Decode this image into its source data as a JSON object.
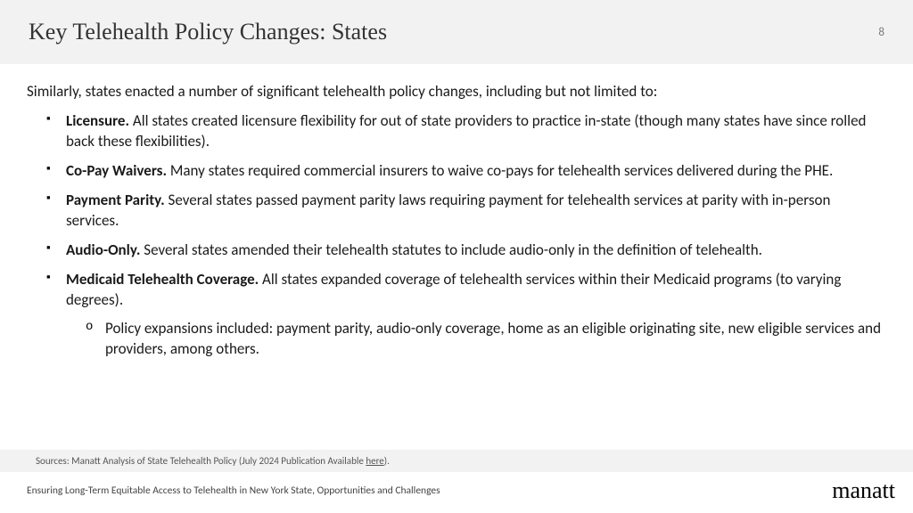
{
  "header": {
    "title": "Key Telehealth Policy Changes: States",
    "page_number": "8"
  },
  "body": {
    "intro": "Similarly, states enacted a number of significant telehealth policy changes, including but not limited to:",
    "bullets": [
      {
        "title": "Licensure.",
        "text": " All states created licensure flexibility for out of state providers to practice in-state (though many states have since rolled back these flexibilities)."
      },
      {
        "title": "Co-Pay Waivers.",
        "text": " Many states required commercial insurers to waive co-pays for telehealth services delivered during the PHE."
      },
      {
        "title": "Payment Parity.",
        "text": " Several states passed payment parity laws requiring payment for telehealth services at parity with in-person services."
      },
      {
        "title": "Audio-Only.",
        "text": " Several states amended their telehealth statutes to include audio-only in the definition of telehealth."
      },
      {
        "title": "Medicaid Telehealth Coverage.",
        "text": " All states expanded coverage of telehealth services within their Medicaid programs (to varying degrees)."
      }
    ],
    "sub_bullet": "Policy expansions included: payment parity, audio-only coverage, home as an eligible originating site, new eligible services and providers, among others."
  },
  "footer": {
    "sources_prefix": "Sources: Manatt Analysis of State Telehealth Policy (July 2024 Publication Available ",
    "sources_link": "here",
    "sources_suffix": ").",
    "subtitle": "Ensuring Long-Term Equitable Access to Telehealth in New York State, Opportunities and Challenges",
    "logo": "manatt"
  },
  "colors": {
    "band_bg": "#f2f2f2",
    "text": "#1a1a1a",
    "page_num": "#7a7a7a"
  }
}
